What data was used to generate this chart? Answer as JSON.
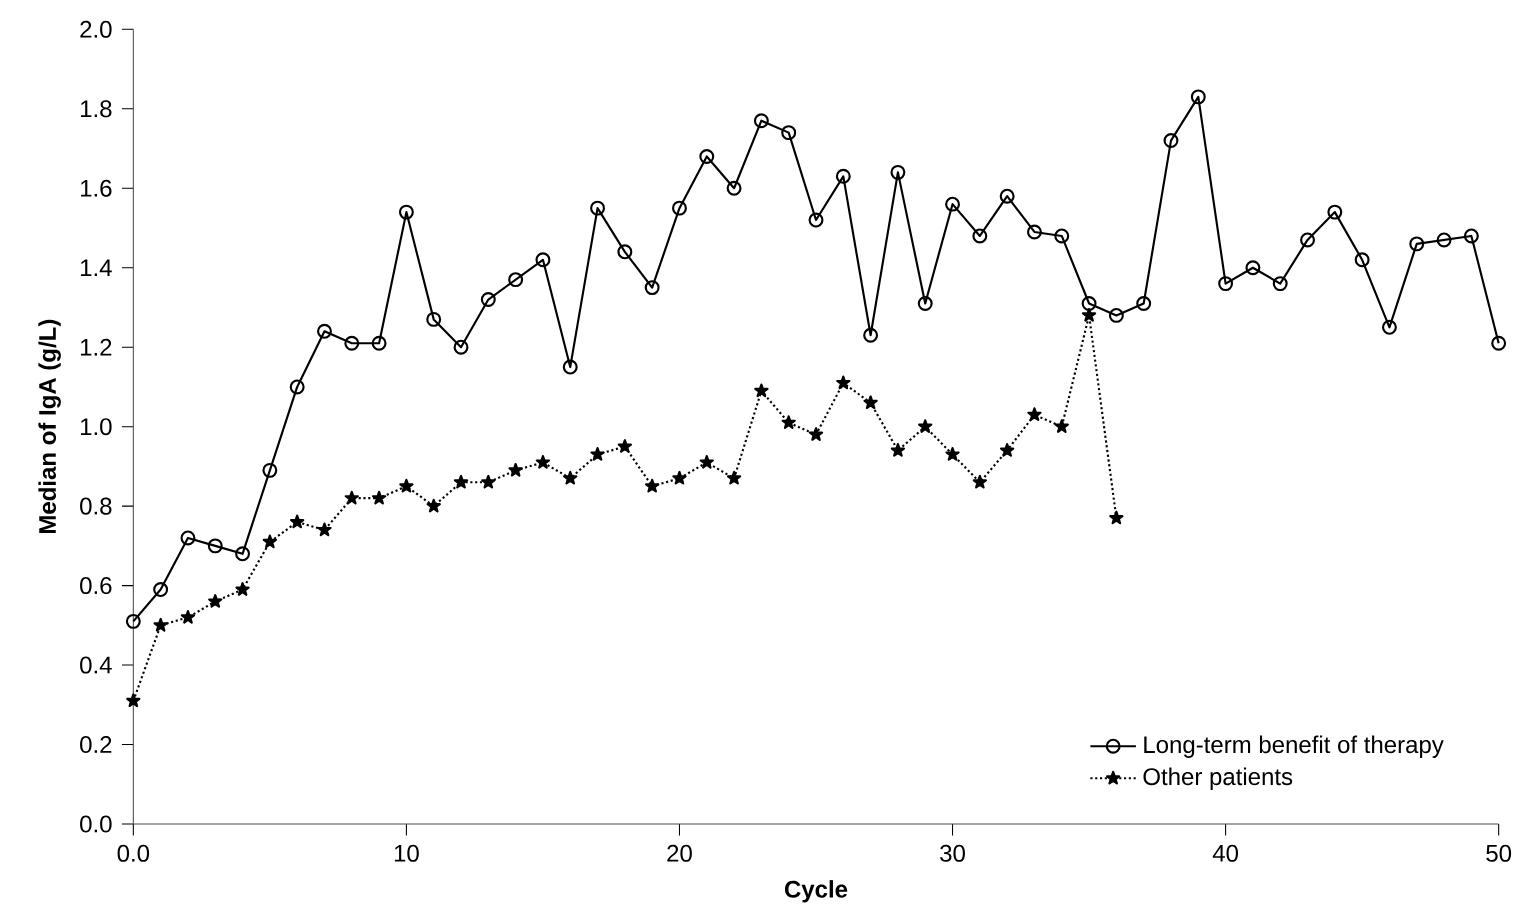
{
  "chart_data": {
    "type": "line",
    "xlabel": "Cycle",
    "ylabel": "Median of IgA (g/L)",
    "xlim": [
      0,
      50
    ],
    "ylim": [
      0,
      2
    ],
    "xticks": [
      {
        "value": 0,
        "label": "0.0"
      },
      10,
      20,
      30,
      40,
      50
    ],
    "yticks": [
      {
        "value": 0,
        "label": "0.0"
      },
      {
        "value": 0.2,
        "label": "0.2"
      },
      {
        "value": 0.4,
        "label": "0.4"
      },
      {
        "value": 0.6,
        "label": "0.6"
      },
      {
        "value": 0.8,
        "label": "0.8"
      },
      {
        "value": 1,
        "label": "1.0"
      },
      {
        "value": 1.2,
        "label": "1.2"
      },
      {
        "value": 1.4,
        "label": "1.4"
      },
      {
        "value": 1.6,
        "label": "1.6"
      },
      {
        "value": 1.8,
        "label": "1.8"
      },
      {
        "value": 2,
        "label": "2.0"
      }
    ],
    "grid": false,
    "legend": "bottom right",
    "series": [
      {
        "name": "Long-term benefit of therapy",
        "color": "#000000",
        "marker": "circle",
        "line_style": "solid",
        "x": [
          0,
          1,
          2,
          3,
          4,
          5,
          6,
          7,
          8,
          9,
          10,
          11,
          12,
          13,
          14,
          15,
          16,
          17,
          18,
          19,
          20,
          21,
          22,
          23,
          24,
          25,
          26,
          27,
          28,
          29,
          30,
          31,
          32,
          33,
          34,
          35,
          36,
          37,
          38,
          39,
          40,
          41,
          42,
          43,
          44,
          45,
          46,
          47,
          48,
          49,
          50
        ],
        "values": [
          0.51,
          0.59,
          0.72,
          0.7,
          0.68,
          0.89,
          1.1,
          1.24,
          1.21,
          1.21,
          1.54,
          1.27,
          1.2,
          1.32,
          1.37,
          1.42,
          1.15,
          1.55,
          1.44,
          1.35,
          1.55,
          1.68,
          1.6,
          1.77,
          1.74,
          1.52,
          1.63,
          1.23,
          1.64,
          1.31,
          1.56,
          1.48,
          1.58,
          1.49,
          1.48,
          1.31,
          1.28,
          1.31,
          1.72,
          1.83,
          1.36,
          1.4,
          1.36,
          1.47,
          1.54,
          1.42,
          1.25,
          1.46,
          1.47,
          1.48,
          1.21
        ]
      },
      {
        "name": "Other patients",
        "color": "#000000",
        "marker": "star",
        "line_style": "dotted",
        "x": [
          0,
          1,
          2,
          3,
          4,
          5,
          6,
          7,
          8,
          9,
          10,
          11,
          12,
          13,
          14,
          15,
          16,
          17,
          18,
          19,
          20,
          21,
          22,
          23,
          24,
          25,
          26,
          27,
          28,
          29,
          30,
          31,
          32,
          33,
          34,
          35,
          36
        ],
        "values": [
          0.31,
          0.5,
          0.52,
          0.56,
          0.59,
          0.71,
          0.76,
          0.74,
          0.82,
          0.82,
          0.85,
          0.8,
          0.86,
          0.86,
          0.89,
          0.91,
          0.87,
          0.93,
          0.95,
          0.85,
          0.87,
          0.91,
          0.87,
          1.09,
          1.01,
          0.98,
          1.11,
          1.06,
          0.94,
          1.0,
          0.93,
          0.86,
          0.94,
          1.03,
          1.0,
          1.28,
          0.77
        ]
      }
    ]
  }
}
